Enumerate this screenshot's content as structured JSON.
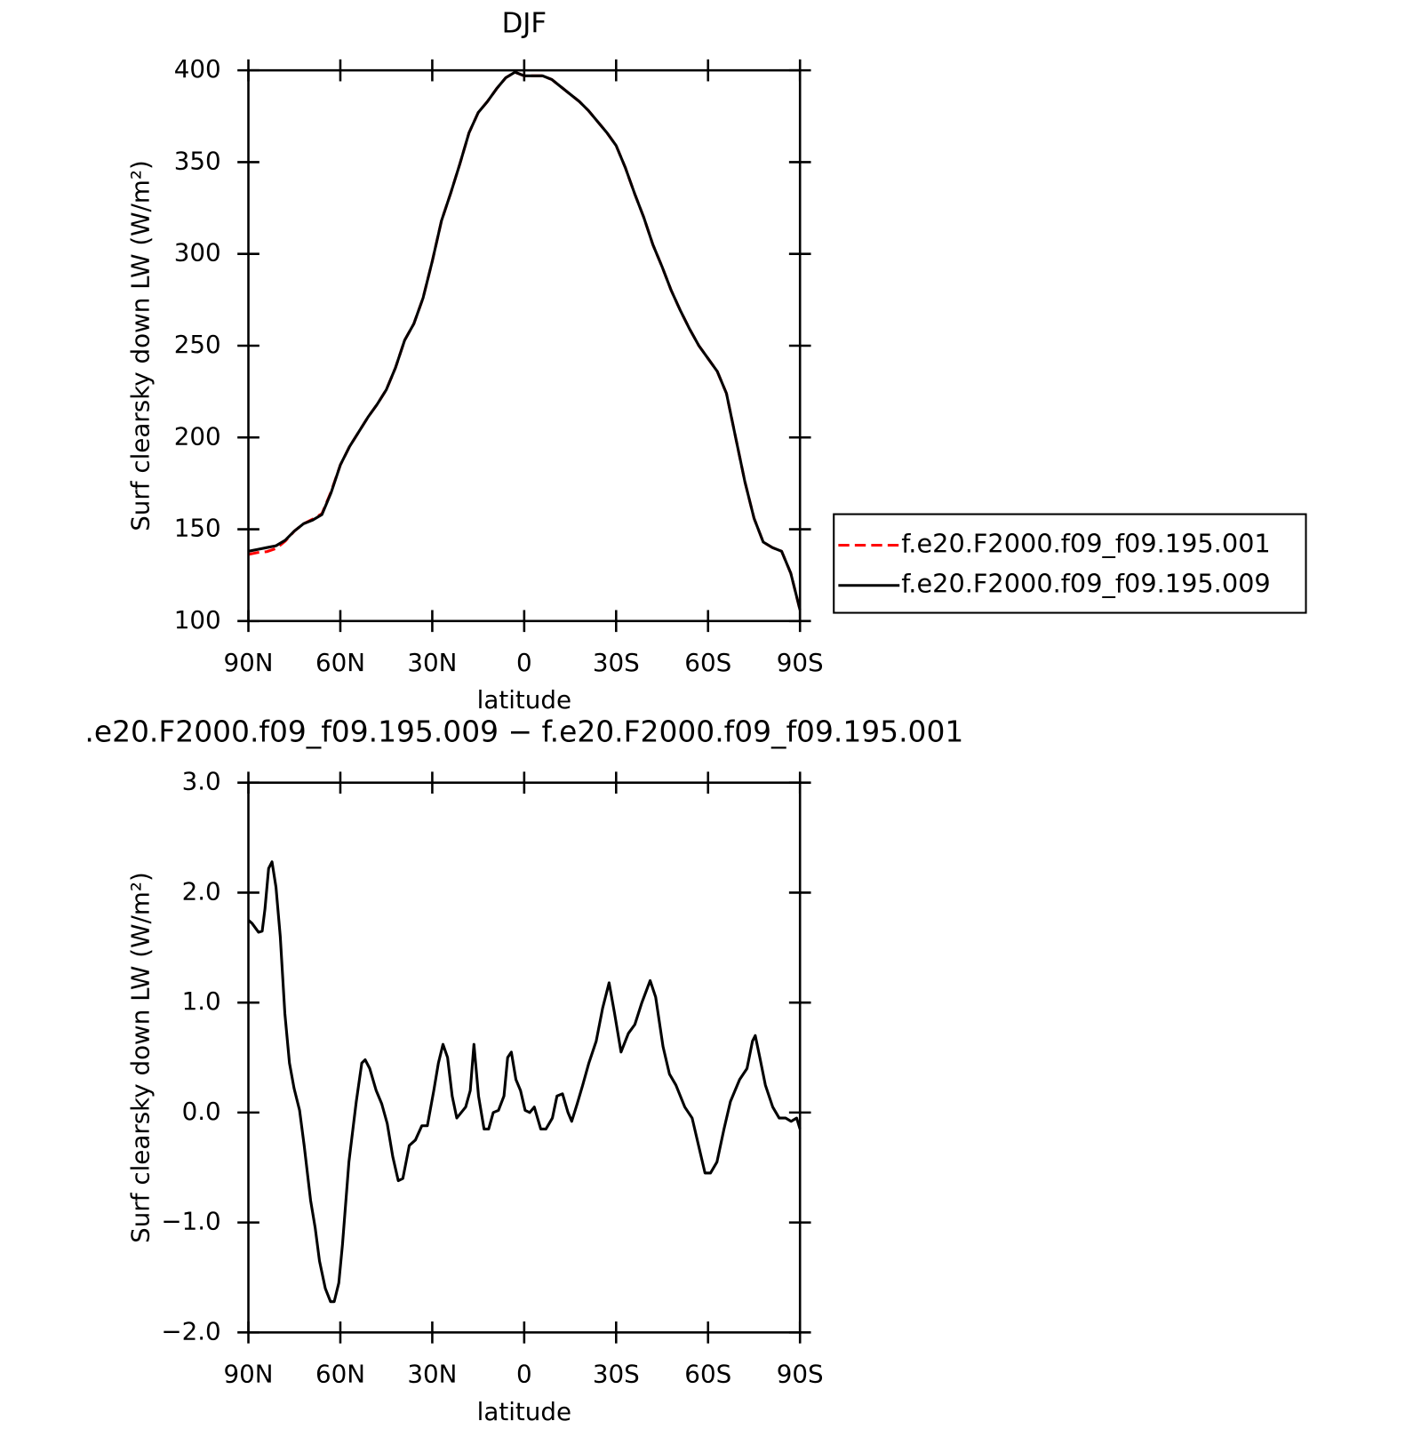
{
  "chart_data": [
    {
      "type": "line",
      "title": "DJF",
      "xlabel": "latitude",
      "ylabel": "Surf clearsky down LW (W/m²)",
      "x": [
        90,
        87,
        84,
        81,
        78,
        75,
        72,
        69,
        66,
        63,
        60,
        57,
        54,
        51,
        48,
        45,
        42,
        39,
        36,
        33,
        30,
        27,
        24,
        21,
        18,
        15,
        12,
        9,
        6,
        3,
        0,
        -3,
        -6,
        -9,
        -12,
        -15,
        -18,
        -21,
        -24,
        -27,
        -30,
        -33,
        -36,
        -39,
        -42,
        -45,
        -48,
        -51,
        -54,
        -57,
        -60,
        -63,
        -66,
        -69,
        -72,
        -75,
        -78,
        -81,
        -84,
        -87,
        -90
      ],
      "series": [
        {
          "name": "f.e20.F2000.f09_f09.195.001",
          "color": "#ff0000",
          "dashed": true,
          "values": [
            136.3,
            137.3,
            137.8,
            139.5,
            143.5,
            149,
            153,
            155.5,
            158.5,
            170.5,
            185,
            195,
            203,
            211,
            218,
            226,
            238,
            253,
            262,
            276,
            296,
            318,
            333,
            349,
            366,
            377,
            383,
            390,
            396,
            399,
            397,
            397,
            397,
            395,
            391,
            387,
            383,
            378,
            372,
            366,
            359,
            347,
            333,
            320,
            305,
            293,
            280,
            269,
            259,
            250,
            243,
            236,
            224,
            200,
            176,
            156,
            143,
            140,
            138,
            126,
            106
          ]
        },
        {
          "name": "f.e20.F2000.f09_f09.195.009",
          "color": "#000000",
          "dashed": false,
          "values": [
            138,
            139,
            140,
            141,
            144,
            149,
            153,
            155,
            158,
            170,
            185,
            195,
            203,
            211,
            218,
            226,
            238,
            253,
            262,
            276,
            296,
            318,
            333,
            349,
            366,
            377,
            383,
            390,
            396,
            399,
            397,
            397,
            397,
            395,
            391,
            387,
            383,
            378,
            372,
            366,
            359,
            347,
            333,
            320,
            305,
            293,
            280,
            269,
            259,
            250,
            243,
            236,
            224,
            200,
            176,
            156,
            143,
            140,
            138,
            126,
            106
          ]
        }
      ],
      "xlim": [
        90,
        -90
      ],
      "xticks": [
        {
          "value": 90,
          "label": "90N"
        },
        {
          "value": 60,
          "label": "60N"
        },
        {
          "value": 30,
          "label": "30N"
        },
        0,
        {
          "value": -30,
          "label": "30S"
        },
        {
          "value": -60,
          "label": "60S"
        },
        {
          "value": -90,
          "label": "90S"
        }
      ],
      "ylim": [
        100,
        400
      ],
      "yticks": [
        100,
        150,
        200,
        250,
        300,
        350,
        400
      ],
      "legend": "right"
    },
    {
      "type": "line",
      "title": ".e20.F2000.f09_f09.195.009 − f.e20.F2000.f09_f09.195.001",
      "xlabel": "latitude",
      "ylabel": "Surf clearsky down LW (W/m²)",
      "x": [
        90,
        88.8,
        86.7,
        85.5,
        84.6,
        83.4,
        82.3,
        81,
        79.6,
        78.1,
        76.6,
        75.1,
        73.3,
        71.8,
        69.7,
        68.2,
        66.8,
        64.9,
        63.2,
        62,
        60.5,
        59.3,
        57.2,
        54.8,
        53,
        51.9,
        50.4,
        48.3,
        46.5,
        44.7,
        42.9,
        41.1,
        39.6,
        37.5,
        35.5,
        33.4,
        31.6,
        29.5,
        28,
        26.5,
        25,
        23.5,
        22,
        19.1,
        17.6,
        16.4,
        14.9,
        13.1,
        11.6,
        10.1,
        8.4,
        6.6,
        5.4,
        4.2,
        2.7,
        1.2,
        -0.3,
        -1.8,
        -3.3,
        -5.4,
        -7.1,
        -9.2,
        -10.7,
        -12.5,
        -14.3,
        -15.5,
        -17.3,
        -19.1,
        -21.1,
        -23.5,
        -25.6,
        -27.7,
        -29.5,
        -31.6,
        -34,
        -36.1,
        -38.4,
        -41.1,
        -42.9,
        -45.3,
        -47.4,
        -49.5,
        -52.4,
        -54.8,
        -56.9,
        -59,
        -60.8,
        -62.9,
        -65.2,
        -67.3,
        -70.3,
        -72.7,
        -74.5,
        -75.4,
        -76.9,
        -78.7,
        -81.1,
        -83.2,
        -85.3,
        -87.1,
        -88.9,
        -90
      ],
      "color": "#000000",
      "values": [
        1.75,
        1.72,
        1.64,
        1.65,
        1.85,
        2.22,
        2.28,
        2.05,
        1.6,
        0.9,
        0.45,
        0.22,
        0.02,
        -0.3,
        -0.8,
        -1.05,
        -1.35,
        -1.6,
        -1.72,
        -1.72,
        -1.55,
        -1.2,
        -0.45,
        0.1,
        0.45,
        0.48,
        0.4,
        0.2,
        0.08,
        -0.1,
        -0.4,
        -0.62,
        -0.6,
        -0.3,
        -0.25,
        -0.12,
        -0.12,
        0.2,
        0.45,
        0.62,
        0.5,
        0.15,
        -0.05,
        0.05,
        0.2,
        0.62,
        0.15,
        -0.15,
        -0.15,
        0.0,
        0.02,
        0.15,
        0.5,
        0.55,
        0.3,
        0.2,
        0.02,
        0.0,
        0.05,
        -0.15,
        -0.15,
        -0.05,
        0.15,
        0.17,
        0.0,
        -0.08,
        0.08,
        0.25,
        0.45,
        0.65,
        0.95,
        1.18,
        0.9,
        0.55,
        0.72,
        0.8,
        1.0,
        1.2,
        1.05,
        0.6,
        0.35,
        0.25,
        0.05,
        -0.05,
        -0.3,
        -0.55,
        -0.55,
        -0.45,
        -0.15,
        0.1,
        0.3,
        0.4,
        0.65,
        0.7,
        0.5,
        0.25,
        0.05,
        -0.05,
        -0.05,
        -0.08,
        -0.05,
        -0.15
      ],
      "xlim": [
        90,
        -90
      ],
      "xticks": [
        {
          "value": 90,
          "label": "90N"
        },
        {
          "value": 60,
          "label": "60N"
        },
        {
          "value": 30,
          "label": "30N"
        },
        0,
        {
          "value": -30,
          "label": "30S"
        },
        {
          "value": -60,
          "label": "60S"
        },
        {
          "value": -90,
          "label": "90S"
        }
      ],
      "ylim": [
        -2,
        3
      ],
      "yticks": [
        {
          "value": -2,
          "label": "−2.0"
        },
        {
          "value": -1,
          "label": "−1.0"
        },
        {
          "value": 0,
          "label": "0.0"
        },
        {
          "value": 1,
          "label": "1.0"
        },
        {
          "value": 2,
          "label": "2.0"
        },
        {
          "value": 3,
          "label": "3.0"
        }
      ]
    }
  ]
}
